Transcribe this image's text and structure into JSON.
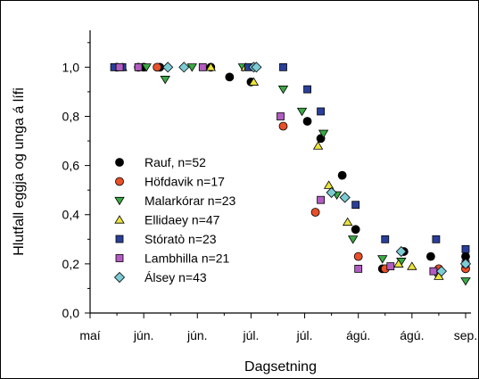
{
  "chart_data": {
    "type": "scatter",
    "xlabel": "Dagsetning",
    "ylabel": "Hlutfall eggja og unga á lífi",
    "xlim": [
      0,
      142
    ],
    "ylim": [
      0,
      1.15
    ],
    "x_tick_values": [
      0,
      20,
      40,
      60,
      80,
      100,
      120,
      140
    ],
    "x_tick_labels": [
      "maí",
      "jún.",
      "jún.",
      "júl.",
      "júl.",
      "ágú.",
      "ágú.",
      "sep."
    ],
    "y_ticks": [
      0,
      0.2,
      0.4,
      0.6,
      0.8,
      1.0
    ],
    "y_tick_labels": [
      "0,0",
      "0,2",
      "0,4",
      "0,6",
      "0,8",
      "1,0"
    ],
    "grid": false,
    "legend_position": "lower-left",
    "series": [
      {
        "name": "Rauf, n=52",
        "marker": "circle",
        "color": "#000000",
        "x": [
          10,
          20,
          26,
          45,
          52,
          60,
          81,
          86,
          94,
          99,
          109,
          117,
          127,
          140
        ],
        "y": [
          1.0,
          1.0,
          1.0,
          1.0,
          0.96,
          0.94,
          0.78,
          0.71,
          0.56,
          0.34,
          0.18,
          0.25,
          0.23,
          0.23
        ]
      },
      {
        "name": "Höfdavik  n=17",
        "marker": "circle",
        "color": "#e8502a",
        "x": [
          18,
          25,
          72,
          84,
          100,
          110,
          130,
          140
        ],
        "y": [
          1.0,
          1.0,
          0.76,
          0.41,
          0.23,
          0.18,
          0.18,
          0.18
        ]
      },
      {
        "name": "Malarkórar  n=23",
        "marker": "triangle-down",
        "color": "#3aa845",
        "x": [
          21,
          28,
          38,
          57,
          72,
          79,
          87,
          92,
          98,
          109,
          116,
          129,
          140
        ],
        "y": [
          1.0,
          0.95,
          1.0,
          1.0,
          0.91,
          0.82,
          0.73,
          0.48,
          0.3,
          0.22,
          0.21,
          0.16,
          0.13
        ]
      },
      {
        "name": "Ellidaey  n=47",
        "marker": "triangle-up",
        "color": "#eae33c",
        "x": [
          12,
          45,
          58,
          61,
          85,
          89,
          96,
          115,
          120,
          130
        ],
        "y": [
          1.0,
          1.0,
          1.0,
          0.94,
          0.68,
          0.52,
          0.37,
          0.2,
          0.19,
          0.15
        ]
      },
      {
        "name": "Stóratò  n=23",
        "marker": "square",
        "color": "#2a3f9a",
        "x": [
          9,
          12,
          59,
          72,
          81,
          86,
          99,
          110,
          129,
          140
        ],
        "y": [
          1.0,
          1.0,
          1.0,
          1.0,
          0.91,
          0.82,
          0.44,
          0.3,
          0.3,
          0.26
        ]
      },
      {
        "name": "Lambhilla  n=21",
        "marker": "square",
        "color": "#b25cc2",
        "x": [
          11,
          18,
          42,
          71,
          86,
          100,
          112,
          128,
          140
        ],
        "y": [
          1.0,
          1.0,
          1.0,
          0.8,
          0.46,
          0.18,
          0.19,
          0.17,
          0.2
        ]
      },
      {
        "name": "Álsey  n=43",
        "marker": "diamond",
        "color": "#7ccbd5",
        "x": [
          29,
          35,
          61,
          62,
          90,
          95,
          116,
          131,
          140
        ],
        "y": [
          1.0,
          1.0,
          1.0,
          1.0,
          0.49,
          0.47,
          0.25,
          0.17,
          0.2
        ]
      }
    ]
  }
}
